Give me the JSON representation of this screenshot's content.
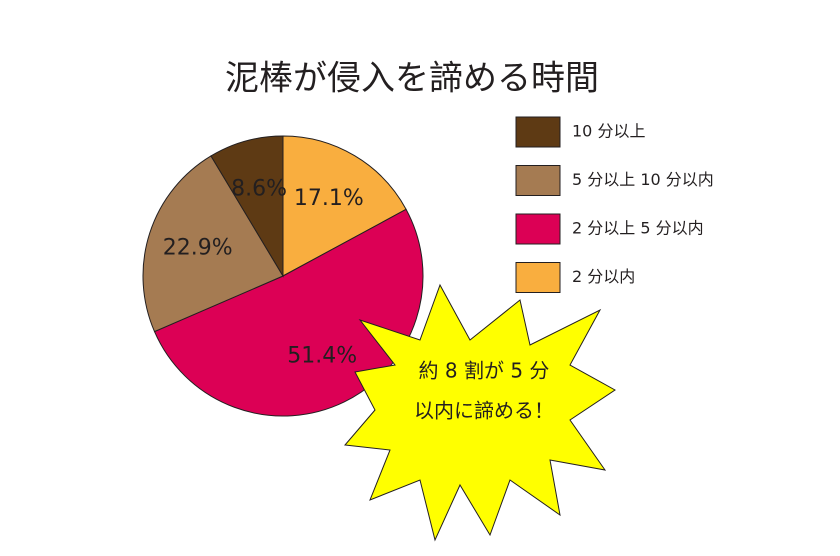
{
  "chart_data": {
    "type": "pie",
    "title": "泥棒が侵入を諦める時間",
    "categories": [
      "10 分以上",
      "5 分以上 10 分以内",
      "2 分以上 5 分以内",
      "2 分以内"
    ],
    "values": [
      8.6,
      22.9,
      51.4,
      17.1
    ],
    "value_labels": [
      "8.6%",
      "22.9%",
      "51.4%",
      "17.1%"
    ],
    "colors": [
      "#5e3a14",
      "#a57b52",
      "#dc0055",
      "#f9ae3f"
    ],
    "annotations": [
      "約 8 割が 5 分",
      "以内に諦める！"
    ]
  }
}
